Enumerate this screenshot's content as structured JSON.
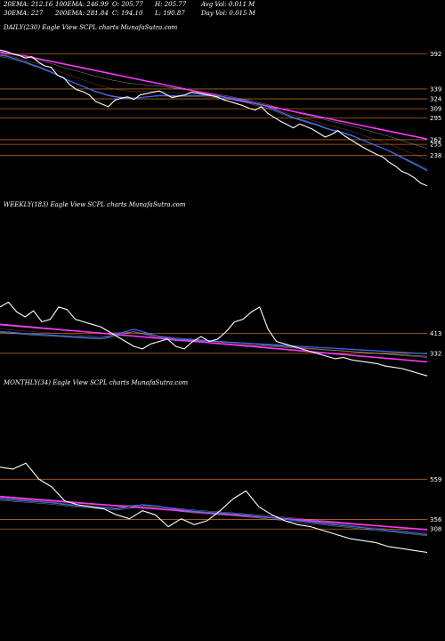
{
  "header": {
    "row1": [
      "20EMA: 212.16",
      "100EMA: 246.99",
      "O: 205.77",
      "H: 205.77",
      "Avg Vol: 0.011 M"
    ],
    "row2": [
      "30EMA: 227",
      "200EMA: 281.84",
      "C: 194.10",
      "L: 190.87",
      "Day Vol: 0.015 M"
    ]
  },
  "colors": {
    "price": "#ffffff",
    "ema_fast": "#3b6fff",
    "ema_slow": "#ff33ff",
    "level_line": "#b5651d",
    "thin_lines": "#c8c8c8"
  },
  "panels": [
    {
      "key": "daily",
      "label": "DAILY(230) Eagle View SCPL charts MunafaSutra.com"
    },
    {
      "key": "weekly",
      "label": "WEEKLY(183) Eagle View SCPL charts MunafaSutra.com"
    },
    {
      "key": "monthly",
      "label": "MONTHLY(34) Eagle View SCPL charts MunafaSutra.com"
    }
  ],
  "chart_data": [
    {
      "type": "line",
      "panel": "daily",
      "ylim": [
        170,
        420
      ],
      "levels": [
        392,
        339,
        324,
        309,
        295,
        262,
        255,
        238
      ],
      "level_labels": [
        "392",
        "339",
        "324",
        "309",
        "295",
        "262",
        "255",
        "238"
      ],
      "series": [
        {
          "role": "price",
          "values": [
            398,
            396,
            392,
            390,
            386,
            388,
            380,
            374,
            372,
            360,
            356,
            345,
            338,
            335,
            330,
            320,
            316,
            312,
            322,
            325,
            327,
            323,
            330,
            332,
            334,
            336,
            331,
            326,
            328,
            330,
            334,
            333,
            331,
            329,
            327,
            323,
            320,
            317,
            314,
            310,
            307,
            312,
            302,
            296,
            290,
            285,
            280,
            286,
            282,
            278,
            272,
            266,
            270,
            276,
            268,
            262,
            256,
            250,
            245,
            240,
            236,
            228,
            222,
            214,
            210,
            204,
            196,
            192
          ]
        },
        {
          "role": "ema_fast",
          "values": [
            390,
            389,
            386,
            383,
            380,
            376,
            373,
            369,
            365,
            360,
            355,
            351,
            347,
            343,
            339,
            335,
            332,
            329,
            327,
            326,
            325,
            325,
            326,
            327,
            328,
            329,
            329,
            329,
            329,
            329,
            329,
            329,
            329,
            329,
            328,
            327,
            326,
            324,
            322,
            320,
            317,
            315,
            312,
            308,
            304,
            300,
            296,
            293,
            290,
            287,
            284,
            280,
            277,
            275,
            272,
            269,
            265,
            261,
            257,
            253,
            249,
            245,
            240,
            235,
            230,
            225,
            220,
            215
          ]
        },
        {
          "role": "ema_slow",
          "values": [
            395,
            393,
            392,
            390,
            389,
            387,
            385,
            383,
            381,
            379,
            377,
            375,
            373,
            371,
            369,
            367,
            365,
            363,
            361,
            359,
            357,
            355,
            353,
            351,
            349,
            347,
            345,
            343,
            341,
            339,
            337,
            335,
            333,
            331,
            329,
            327,
            325,
            323,
            321,
            319,
            317,
            315,
            313,
            311,
            309,
            307,
            305,
            303,
            301,
            299,
            297,
            295,
            293,
            291,
            289,
            287,
            285,
            283,
            281,
            279,
            277,
            275,
            273,
            271,
            269,
            267,
            265,
            263
          ]
        }
      ]
    },
    {
      "type": "line",
      "panel": "weekly",
      "ylim": [
        230,
        900
      ],
      "levels": [
        413,
        332
      ],
      "level_labels": [
        "413",
        "332"
      ],
      "series": [
        {
          "role": "price",
          "values": [
            520,
            540,
            500,
            480,
            505,
            460,
            470,
            520,
            510,
            470,
            460,
            450,
            440,
            420,
            400,
            380,
            360,
            350,
            370,
            380,
            390,
            360,
            350,
            380,
            400,
            380,
            390,
            420,
            460,
            470,
            500,
            520,
            430,
            380,
            370,
            360,
            350,
            340,
            330,
            320,
            310,
            315,
            305,
            300,
            295,
            290,
            280,
            275,
            270,
            260,
            250,
            240
          ]
        },
        {
          "role": "ema_fast",
          "values": [
            420,
            418,
            415,
            412,
            410,
            408,
            406,
            404,
            402,
            400,
            398,
            396,
            394,
            400,
            410,
            420,
            430,
            420,
            410,
            400,
            395,
            390,
            388,
            386,
            384,
            382,
            380,
            378,
            376,
            374,
            372,
            370,
            368,
            366,
            364,
            362,
            360,
            358,
            356,
            354,
            352,
            350,
            348,
            346,
            344,
            342,
            340,
            338,
            336,
            334,
            332,
            330
          ]
        },
        {
          "role": "ema_slow",
          "values": [
            450,
            447,
            444,
            441,
            438,
            435,
            432,
            429,
            426,
            423,
            420,
            417,
            414,
            411,
            408,
            405,
            402,
            399,
            396,
            393,
            390,
            387,
            384,
            381,
            378,
            375,
            372,
            369,
            366,
            363,
            360,
            357,
            354,
            351,
            348,
            345,
            342,
            339,
            336,
            333,
            330,
            327,
            324,
            321,
            318,
            315,
            312,
            309,
            306,
            303,
            300,
            297
          ]
        }
      ]
    },
    {
      "type": "line",
      "panel": "monthly",
      "ylim": [
        170,
        1000
      ],
      "levels": [
        559,
        356,
        308
      ],
      "level_labels": [
        "559",
        "356",
        "308"
      ],
      "series": [
        {
          "role": "price",
          "values": [
            620,
            610,
            640,
            560,
            520,
            450,
            430,
            420,
            410,
            380,
            360,
            400,
            380,
            320,
            360,
            330,
            350,
            400,
            460,
            500,
            420,
            380,
            350,
            330,
            320,
            300,
            280,
            260,
            250,
            240,
            220,
            210,
            200,
            190
          ]
        },
        {
          "role": "ema_fast",
          "values": [
            460,
            455,
            450,
            445,
            440,
            432,
            425,
            420,
            415,
            410,
            420,
            430,
            425,
            415,
            405,
            398,
            392,
            388,
            384,
            378,
            372,
            365,
            358,
            350,
            343,
            336,
            329,
            322,
            315,
            308,
            301,
            294,
            287,
            280
          ]
        },
        {
          "role": "ema_slow",
          "values": [
            470,
            465,
            460,
            455,
            450,
            445,
            440,
            435,
            430,
            425,
            420,
            415,
            410,
            405,
            400,
            395,
            390,
            385,
            380,
            375,
            370,
            365,
            360,
            355,
            350,
            345,
            340,
            335,
            330,
            325,
            320,
            315,
            310,
            305
          ]
        }
      ]
    }
  ]
}
